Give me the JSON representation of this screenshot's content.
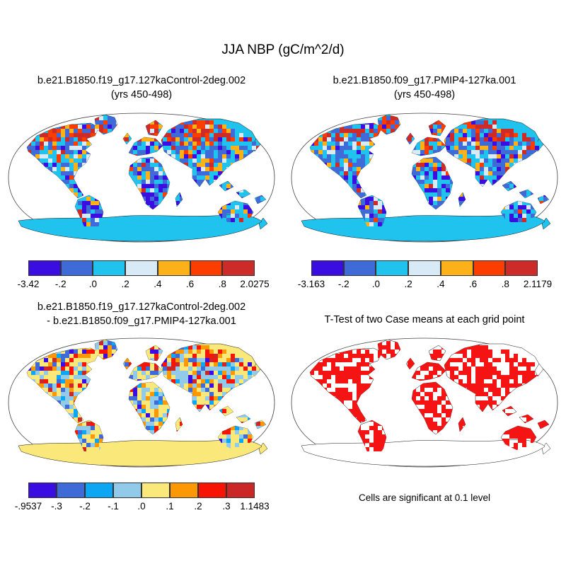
{
  "title": "JJA NBP (gC/m^2/d)",
  "panels": [
    {
      "name": "control",
      "title_line1": "b.e21.B1850.f19_g17.127kaControl-2deg.002",
      "title_line2": "(yrs 450-498)",
      "map_mode": "nbp",
      "colorbar": {
        "colors": [
          "#3A0EE0",
          "#3E6BD8",
          "#1FC3EE",
          "#D8EAF6",
          "#FBB117",
          "#FB3D00",
          "#CD2B28"
        ],
        "labels": [
          "-3.42",
          "-.2",
          ".0",
          ".2",
          ".4",
          ".6",
          ".8",
          "2.0275"
        ]
      }
    },
    {
      "name": "pmip4",
      "title_line1": "b.e21.B1850.f09_g17.PMIP4-127ka.001",
      "title_line2": "(yrs 450-498)",
      "map_mode": "nbp",
      "colorbar": {
        "colors": [
          "#3A0EE0",
          "#3E6BD8",
          "#1FC3EE",
          "#D8EAF6",
          "#FBB117",
          "#FB3D00",
          "#CD2B28"
        ],
        "labels": [
          "-3.163",
          "-.2",
          ".0",
          ".2",
          ".4",
          ".6",
          ".8",
          "2.1179"
        ]
      }
    },
    {
      "name": "difference",
      "title_line1": "b.e21.B1850.f19_g17.127kaControl-2deg.002",
      "title_line2": "- b.e21.B1850.f09_g17.PMIP4-127ka.001",
      "map_mode": "diff",
      "colorbar": {
        "colors": [
          "#3A0EE0",
          "#3E6BD8",
          "#0DA6F2",
          "#92CBEA",
          "#FBE87A",
          "#FB9804",
          "#F81404",
          "#CC2727"
        ],
        "labels": [
          "-.9537",
          "-.3",
          "-.2",
          "-.1",
          ".0",
          ".1",
          ".2",
          ".3",
          "1.1483"
        ]
      }
    },
    {
      "name": "ttest",
      "title_line1": "T-Test of two Case means at each grid point",
      "title_line2": "",
      "map_mode": "ttest",
      "caption": "Cells are significant at 0.1 level",
      "significance_color": "#F41414"
    }
  ],
  "map_style": {
    "ocean": "#ffffff",
    "projection_outline": "#444444",
    "land_outline": "#111111",
    "antarctica_fill_nbp": "#1FC3EE",
    "antarctica_fill_diff": "#FBE87A",
    "base_fill_nbp": "#1FC3EE",
    "base_fill_diff": "#FBE87A"
  },
  "chart_data": [
    {
      "type": "heatmap",
      "subtype": "global-map",
      "title": "b.e21.B1850.f19_g17.127kaControl-2deg.002 (yrs 450-498)",
      "variable": "JJA NBP (gC/m^2/d)",
      "colorbar_ticks": [
        -3.42,
        -0.2,
        0.0,
        0.2,
        0.4,
        0.6,
        0.8,
        2.0275
      ],
      "colorbar_colors": [
        "#3A0EE0",
        "#3E6BD8",
        "#1FC3EE",
        "#D8EAF6",
        "#FBB117",
        "#FB3D00",
        "#CD2B28"
      ],
      "value_min": -3.42,
      "value_max": 2.0275,
      "legend_position": "below"
    },
    {
      "type": "heatmap",
      "subtype": "global-map",
      "title": "b.e21.B1850.f09_g17.PMIP4-127ka.001 (yrs 450-498)",
      "variable": "JJA NBP (gC/m^2/d)",
      "colorbar_ticks": [
        -3.163,
        -0.2,
        0.0,
        0.2,
        0.4,
        0.6,
        0.8,
        2.1179
      ],
      "colorbar_colors": [
        "#3A0EE0",
        "#3E6BD8",
        "#1FC3EE",
        "#D8EAF6",
        "#FBB117",
        "#FB3D00",
        "#CD2B28"
      ],
      "value_min": -3.163,
      "value_max": 2.1179,
      "legend_position": "below"
    },
    {
      "type": "heatmap",
      "subtype": "global-map-difference",
      "title": "b.e21.B1850.f19_g17.127kaControl-2deg.002 - b.e21.B1850.f09_g17.PMIP4-127ka.001",
      "variable": "JJA NBP difference (gC/m^2/d)",
      "colorbar_ticks": [
        -0.9537,
        -0.3,
        -0.2,
        -0.1,
        0.0,
        0.1,
        0.2,
        0.3,
        1.1483
      ],
      "colorbar_colors": [
        "#3A0EE0",
        "#3E6BD8",
        "#0DA6F2",
        "#92CBEA",
        "#FBE87A",
        "#FB9804",
        "#F81404",
        "#CC2727"
      ],
      "value_min": -0.9537,
      "value_max": 1.1483,
      "legend_position": "below"
    },
    {
      "type": "heatmap",
      "subtype": "significance-mask",
      "title": "T-Test of two Case means at each grid point",
      "note": "Cells are significant at 0.1 level",
      "significant_cell_color": "#F41414"
    }
  ]
}
